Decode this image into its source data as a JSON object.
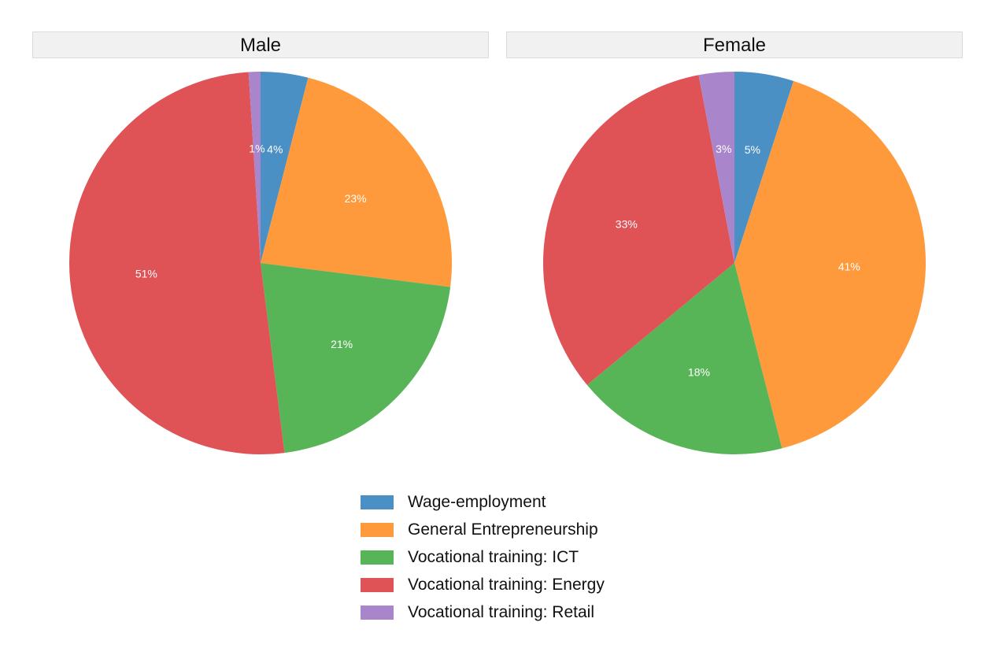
{
  "chart_data": [
    {
      "type": "pie",
      "title": "Male",
      "categories": [
        "Wage-employment",
        "General Entrepreneurship",
        "Vocational training: ICT",
        "Vocational training: Energy",
        "Vocational training: Retail"
      ],
      "values": [
        4,
        23,
        21,
        51,
        1
      ],
      "labels": [
        "4%",
        "23%",
        "21%",
        "51%",
        "1%"
      ],
      "colors": [
        "#4a90c4",
        "#ff9a3c",
        "#57b557",
        "#df5357",
        "#a986cc"
      ]
    },
    {
      "type": "pie",
      "title": "Female",
      "categories": [
        "Wage-employment",
        "General Entrepreneurship",
        "Vocational training: ICT",
        "Vocational training: Energy",
        "Vocational training: Retail"
      ],
      "values": [
        5,
        41,
        18,
        33,
        3
      ],
      "labels": [
        "5%",
        "41%",
        "18%",
        "33%",
        "3%"
      ],
      "colors": [
        "#4a90c4",
        "#ff9a3c",
        "#57b557",
        "#df5357",
        "#a986cc"
      ]
    }
  ],
  "legend": {
    "placement": "bottom-center",
    "items": [
      {
        "label": "Wage-employment",
        "color": "#4a90c4"
      },
      {
        "label": "General Entrepreneurship",
        "color": "#ff9a3c"
      },
      {
        "label": "Vocational training: ICT",
        "color": "#57b557"
      },
      {
        "label": "Vocational training: Energy",
        "color": "#df5357"
      },
      {
        "label": "Vocational training: Retail",
        "color": "#a986cc"
      }
    ]
  }
}
